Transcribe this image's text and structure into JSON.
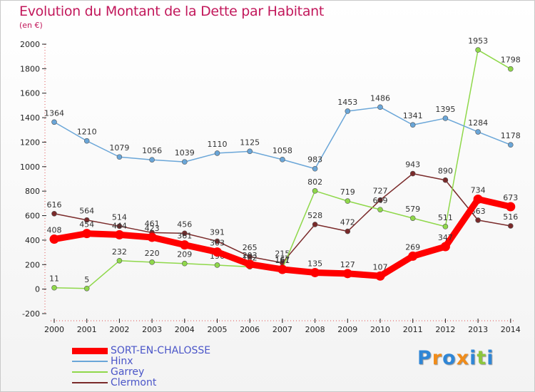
{
  "chart_data": {
    "type": "line",
    "title": "Evolution du Montant de la Dette par Habitant",
    "subtitle": "(en €)",
    "x": [
      "2000",
      "2001",
      "2002",
      "2003",
      "2004",
      "2005",
      "2006",
      "2007",
      "2008",
      "2009",
      "2010",
      "2011",
      "2012",
      "2013",
      "2014"
    ],
    "ylim": [
      -200,
      2000
    ],
    "yticks": [
      -200,
      0,
      200,
      400,
      600,
      800,
      1000,
      1200,
      1400,
      1600,
      1800,
      2000
    ],
    "grid": false,
    "legend_position": "bottom-left",
    "series": [
      {
        "name": "SORT-EN-CHALOSSE",
        "color": "#ff0000",
        "values": [
          408,
          454,
          444,
          423,
          361,
          303,
          203,
          161,
          135,
          127,
          107,
          269,
          347,
          734,
          673
        ]
      },
      {
        "name": "Hinx",
        "color": "#6aa6d8",
        "values": [
          1364,
          1210,
          1079,
          1056,
          1039,
          1110,
          1125,
          1058,
          983,
          1453,
          1486,
          1341,
          1395,
          1284,
          1178
        ]
      },
      {
        "name": "Garrey",
        "color": "#8fd84a",
        "values": [
          11,
          5,
          232,
          220,
          209,
          196,
          182,
          167,
          802,
          719,
          649,
          579,
          511,
          1953,
          1798
        ]
      },
      {
        "name": "Clermont",
        "color": "#7a2a2a",
        "values": [
          616,
          564,
          514,
          461,
          456,
          391,
          265,
          215,
          528,
          472,
          727,
          943,
          890,
          563,
          516
        ]
      }
    ]
  },
  "logo": {
    "text": "Proxiti",
    "colors": [
      "#2f86d6",
      "#f08c1a",
      "#2f86d6",
      "#f08c1a",
      "#2f86d6",
      "#8cc63e",
      "#2f86d6"
    ]
  }
}
